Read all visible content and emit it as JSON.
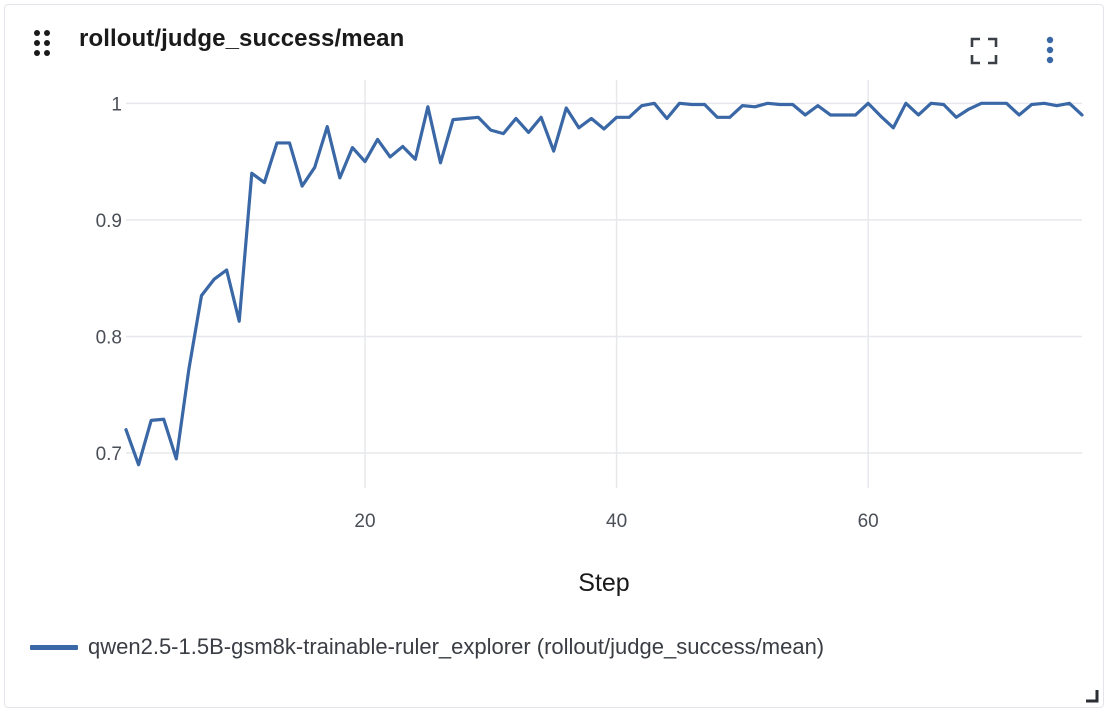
{
  "panel": {
    "title": "rollout/judge_success/mean",
    "icons": {
      "drag": "drag-handle-icon",
      "fullscreen": "fullscreen-icon",
      "more": "more-vertical-icon",
      "resize": "resize-corner-icon"
    }
  },
  "colors": {
    "series": "#3a67a5",
    "grid": "#e6e8ec",
    "tick": "#4a4f57"
  },
  "chart_data": {
    "type": "line",
    "title": "rollout/judge_success/mean",
    "xlabel": "Step",
    "ylabel": "",
    "xlim": [
      1,
      77
    ],
    "ylim": [
      0.67,
      1.02
    ],
    "x_ticks": [
      20,
      40,
      60
    ],
    "x_tick_labels": [
      "20",
      "40",
      "60"
    ],
    "y_ticks": [
      0.7,
      0.8,
      0.9,
      1
    ],
    "y_tick_labels": [
      "0.7",
      "0.8",
      "0.9",
      "1"
    ],
    "grid": true,
    "legend_position": "bottom-left",
    "series": [
      {
        "name": "qwen2.5-1.5B-gsm8k-trainable-ruler_explorer (rollout/judge_success/mean)",
        "color": "#3a67a5",
        "x": [
          1,
          2,
          3,
          4,
          5,
          6,
          7,
          8,
          9,
          10,
          11,
          12,
          13,
          14,
          15,
          16,
          17,
          18,
          19,
          20,
          21,
          22,
          23,
          24,
          25,
          26,
          27,
          28,
          29,
          30,
          31,
          32,
          33,
          34,
          35,
          36,
          37,
          38,
          39,
          40,
          41,
          42,
          43,
          44,
          45,
          46,
          47,
          48,
          49,
          50,
          51,
          52,
          53,
          54,
          55,
          56,
          57,
          58,
          59,
          60,
          61,
          62,
          63,
          64,
          65,
          66,
          67,
          68,
          69,
          70,
          71,
          72,
          73,
          74,
          75,
          76,
          77
        ],
        "y": [
          0.72,
          0.69,
          0.728,
          0.729,
          0.695,
          0.772,
          0.835,
          0.849,
          0.857,
          0.813,
          0.94,
          0.932,
          0.966,
          0.966,
          0.929,
          0.945,
          0.98,
          0.936,
          0.962,
          0.95,
          0.969,
          0.954,
          0.963,
          0.952,
          0.997,
          0.949,
          0.986,
          0.987,
          0.988,
          0.977,
          0.974,
          0.987,
          0.975,
          0.988,
          0.959,
          0.996,
          0.979,
          0.987,
          0.978,
          0.988,
          0.988,
          0.998,
          1.0,
          0.987,
          1.0,
          0.999,
          0.999,
          0.988,
          0.988,
          0.998,
          0.997,
          1.0,
          0.999,
          0.999,
          0.99,
          0.998,
          0.99,
          0.99,
          0.99,
          1.0,
          0.989,
          0.979,
          1.0,
          0.99,
          1.0,
          0.999,
          0.988,
          0.995,
          1.0,
          1.0,
          1.0,
          0.99,
          0.999,
          1.0,
          0.998,
          1.0,
          0.99
        ]
      }
    ]
  }
}
